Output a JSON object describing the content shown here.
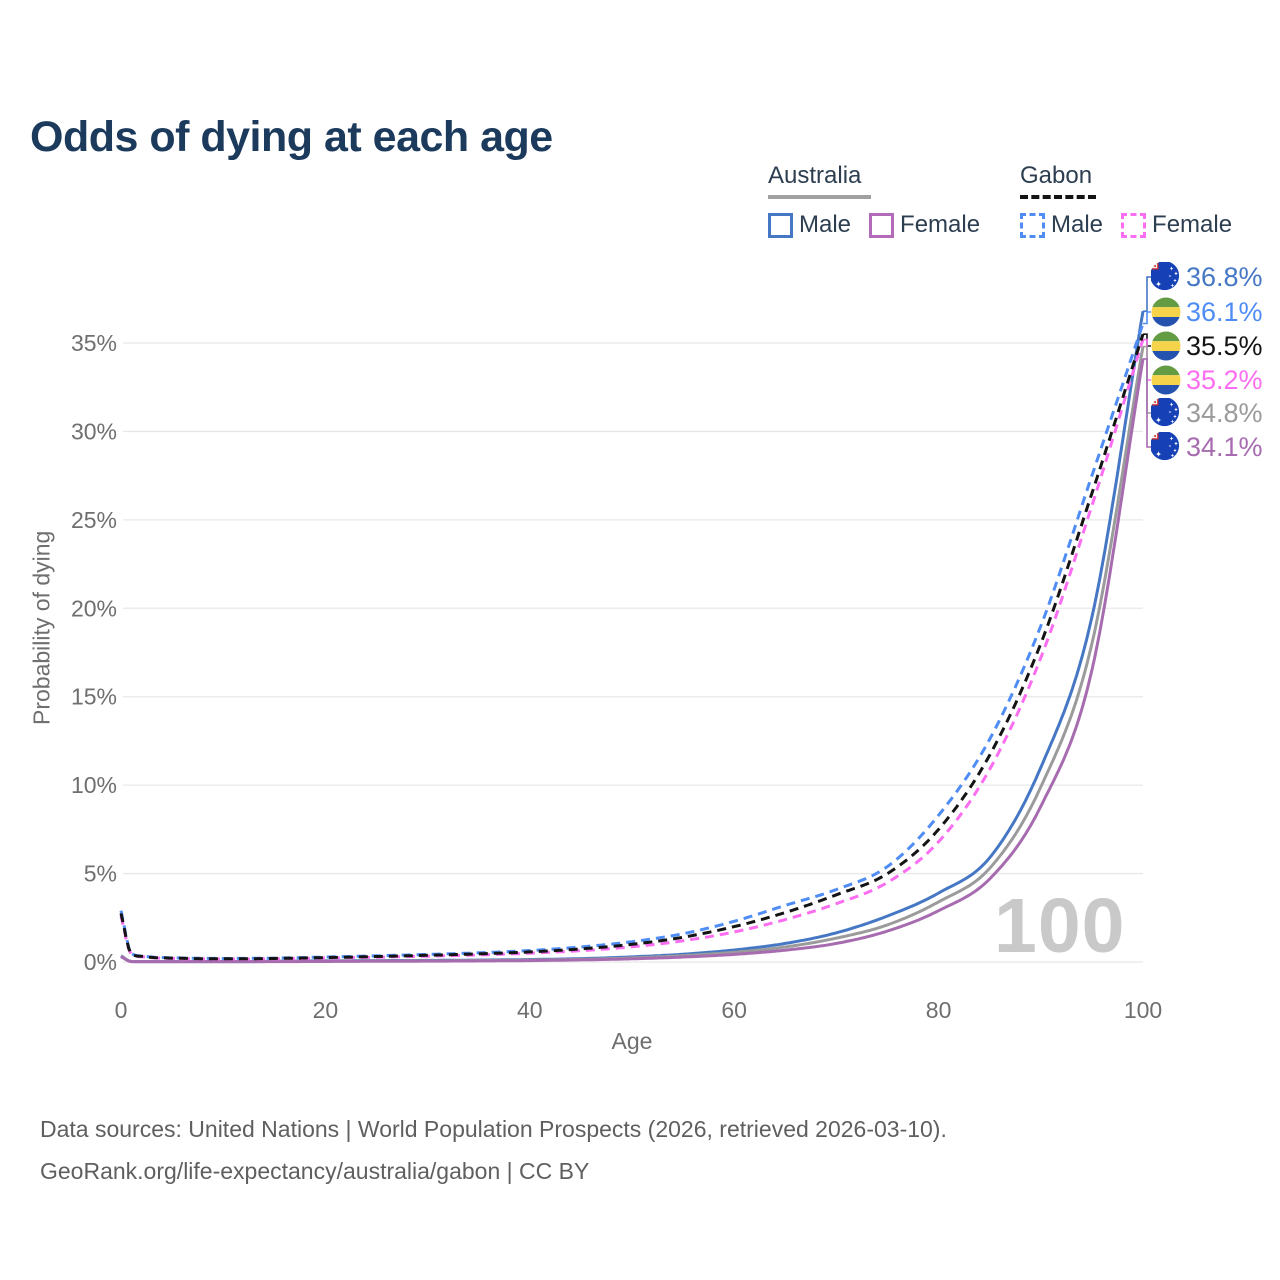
{
  "title": "Odds of dying at each age",
  "legend": {
    "groups": [
      {
        "country": "Australia",
        "line_style": "solid",
        "underline_color": "#a0a0a0",
        "items": [
          {
            "label": "Male",
            "color": "#4577c4"
          },
          {
            "label": "Female",
            "color": "#b36ab8"
          }
        ]
      },
      {
        "country": "Gabon",
        "line_style": "dashed",
        "underline_color": "#141414",
        "items": [
          {
            "label": "Male",
            "color": "#4f8df5"
          },
          {
            "label": "Female",
            "color": "#fb6ef1"
          }
        ]
      }
    ]
  },
  "axes": {
    "y_label": "Probability of dying",
    "x_label": "Age",
    "y_ticks": [
      "0%",
      "5%",
      "10%",
      "15%",
      "20%",
      "25%",
      "30%",
      "35%"
    ],
    "x_ticks": [
      "0",
      "20",
      "40",
      "60",
      "80",
      "100"
    ]
  },
  "watermark": "100",
  "chart_data": {
    "type": "line",
    "title": "Odds of dying at each age",
    "xlabel": "Age",
    "ylabel": "Probability of dying",
    "xlim": [
      0,
      100
    ],
    "ylim_pct": [
      0,
      38
    ],
    "grid": "horizontal",
    "x": [
      0,
      1,
      2,
      3,
      5,
      10,
      15,
      20,
      25,
      30,
      35,
      40,
      45,
      50,
      55,
      60,
      65,
      70,
      75,
      80,
      85,
      90,
      95,
      100
    ],
    "series": [
      {
        "id": "au_male",
        "country": "Australia",
        "sex": "Male",
        "color": "#4577c4",
        "dash": false,
        "values_pct": [
          0.35,
          0.03,
          0.02,
          0.015,
          0.01,
          0.01,
          0.04,
          0.07,
          0.08,
          0.09,
          0.11,
          0.14,
          0.19,
          0.29,
          0.44,
          0.68,
          1.05,
          1.65,
          2.6,
          3.9,
          5.9,
          11.0,
          19.5,
          36.8
        ]
      },
      {
        "id": "au_both",
        "country": "Australia",
        "sex": "Both sexes",
        "color": "#9b9b9b",
        "dash": false,
        "values_pct": [
          0.33,
          0.027,
          0.018,
          0.013,
          0.009,
          0.009,
          0.03,
          0.05,
          0.06,
          0.07,
          0.085,
          0.11,
          0.15,
          0.23,
          0.36,
          0.55,
          0.85,
          1.35,
          2.1,
          3.4,
          5.3,
          9.9,
          18.0,
          34.8
        ]
      },
      {
        "id": "au_female",
        "country": "Australia",
        "sex": "Female",
        "color": "#a76cb0",
        "dash": false,
        "values_pct": [
          0.3,
          0.024,
          0.016,
          0.012,
          0.008,
          0.008,
          0.02,
          0.03,
          0.04,
          0.05,
          0.06,
          0.08,
          0.12,
          0.18,
          0.28,
          0.43,
          0.67,
          1.05,
          1.75,
          2.9,
          4.7,
          8.8,
          16.5,
          34.1
        ]
      },
      {
        "id": "ga_male",
        "country": "Gabon",
        "sex": "Male",
        "color": "#4f8df5",
        "dash": true,
        "values_pct": [
          2.9,
          0.5,
          0.34,
          0.28,
          0.24,
          0.2,
          0.22,
          0.28,
          0.35,
          0.43,
          0.52,
          0.65,
          0.85,
          1.15,
          1.6,
          2.3,
          3.2,
          4.1,
          5.4,
          8.3,
          12.6,
          19.0,
          27.5,
          36.1
        ]
      },
      {
        "id": "ga_female",
        "country": "Gabon",
        "sex": "Female",
        "color": "#fb6ef1",
        "dash": true,
        "values_pct": [
          2.6,
          0.44,
          0.3,
          0.24,
          0.2,
          0.17,
          0.18,
          0.22,
          0.27,
          0.33,
          0.4,
          0.5,
          0.64,
          0.86,
          1.2,
          1.7,
          2.4,
          3.3,
          4.5,
          6.8,
          10.9,
          17.2,
          25.8,
          35.2
        ]
      },
      {
        "id": "ga_both",
        "country": "Gabon",
        "sex": "Both sexes",
        "color": "#141414",
        "dash": true,
        "values_pct": [
          2.75,
          0.47,
          0.32,
          0.26,
          0.22,
          0.18,
          0.2,
          0.25,
          0.31,
          0.38,
          0.46,
          0.57,
          0.74,
          1.0,
          1.4,
          2.0,
          2.8,
          3.8,
          5.0,
          7.5,
          11.7,
          18.0,
          26.5,
          35.5
        ]
      }
    ]
  },
  "end_labels": [
    {
      "value": "36.8%",
      "flag": "australia",
      "series": "au_male",
      "color": "#4577c4"
    },
    {
      "value": "36.1%",
      "flag": "gabon",
      "series": "ga_male",
      "color": "#4f8df5"
    },
    {
      "value": "35.5%",
      "flag": "gabon",
      "series": "ga_both",
      "color": "#141414"
    },
    {
      "value": "35.2%",
      "flag": "gabon",
      "series": "ga_female",
      "color": "#fb6ef1"
    },
    {
      "value": "34.8%",
      "flag": "australia",
      "series": "au_both",
      "color": "#9b9b9b"
    },
    {
      "value": "34.1%",
      "flag": "australia",
      "series": "au_female",
      "color": "#a76cb0"
    }
  ],
  "source": {
    "line1": "Data sources: United Nations | World Population Prospects (2026, retrieved 2026-03-10).",
    "line2": "GeoRank.org/life-expectancy/australia/gabon | CC BY"
  },
  "colors": {
    "title_text": "#1b3a5c",
    "axis_text": "#6f6f6f",
    "legend_text": "#2c3e50",
    "gridline": "#e8e8e8",
    "watermark": "#c9c9c9",
    "source_text": "#5f5f5f",
    "flag_australia_blue": "#1640b5",
    "flag_union_jack_red": "#d02a2a",
    "flag_gabon_green": "#649c44",
    "flag_gabon_yellow": "#f5d44b",
    "flag_gabon_blue": "#2452ae"
  }
}
